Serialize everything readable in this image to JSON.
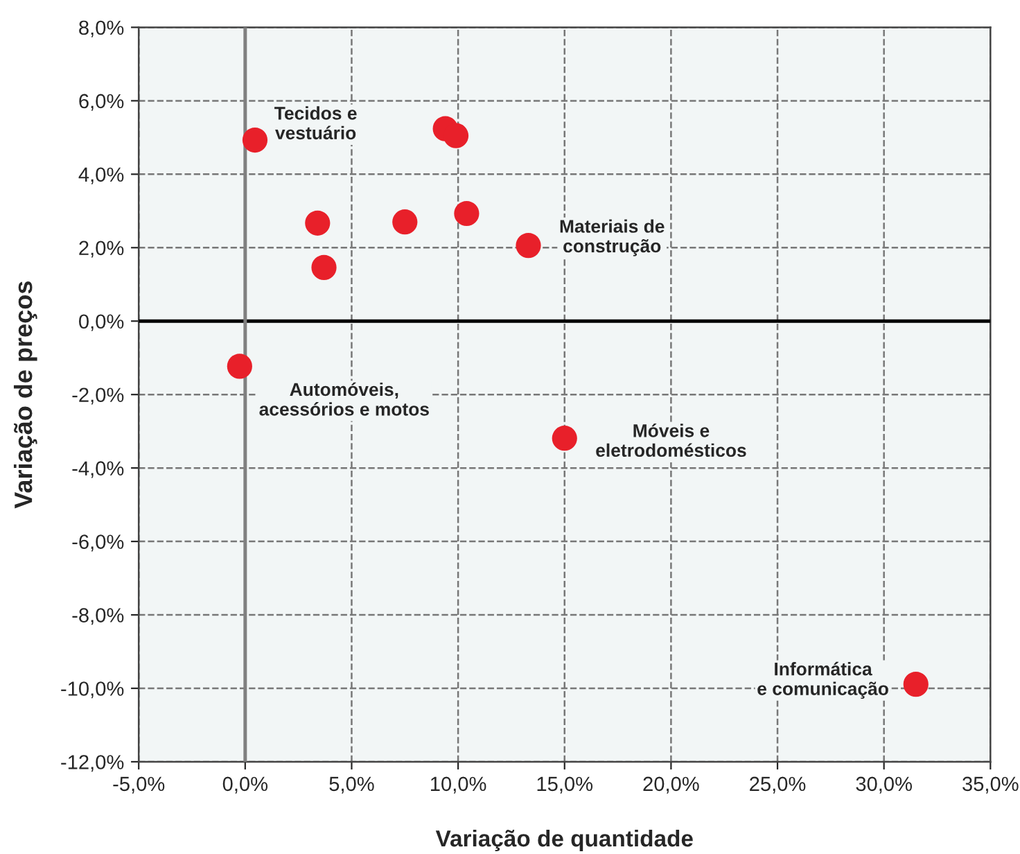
{
  "chart_data": {
    "type": "scatter",
    "xlabel": "Variação de quantidade",
    "ylabel": "Variação de preços",
    "x": [
      0.46,
      3.4,
      3.7,
      7.5,
      9.4,
      9.9,
      10.4,
      13.3,
      -0.26,
      15.0,
      31.5
    ],
    "series": [
      {
        "color": "#e8202a",
        "values": [
          4.93,
          2.67,
          1.46,
          2.7,
          5.24,
          5.05,
          2.93,
          2.06,
          -1.23,
          -3.19,
          -9.89
        ]
      }
    ],
    "marker": "circle",
    "grid": true,
    "xlim": [
      -5,
      35
    ],
    "ylim": [
      -12,
      8
    ],
    "xticks": [
      {
        "value": -5,
        "label": "-5,0%"
      },
      {
        "value": 0,
        "label": "0,0%"
      },
      {
        "value": 5,
        "label": "5,0%"
      },
      {
        "value": 10,
        "label": "10,0%"
      },
      {
        "value": 15,
        "label": "15,0%"
      },
      {
        "value": 20,
        "label": "20,0%"
      },
      {
        "value": 25,
        "label": "25,0%"
      },
      {
        "value": 30,
        "label": "30,0%"
      },
      {
        "value": 35,
        "label": "35,0%"
      }
    ],
    "yticks": [
      {
        "value": -12,
        "label": "-12,0%"
      },
      {
        "value": -10,
        "label": "-10,0%"
      },
      {
        "value": -8,
        "label": "-8,0%"
      },
      {
        "value": -6,
        "label": "-6,0%"
      },
      {
        "value": -4,
        "label": "-4,0%"
      },
      {
        "value": -2,
        "label": "-2,0%"
      },
      {
        "value": 0,
        "label": "0,0%"
      },
      {
        "value": 2,
        "label": "2,0%"
      },
      {
        "value": 4,
        "label": "4,0%"
      },
      {
        "value": 6,
        "label": "6,0%"
      },
      {
        "value": 8,
        "label": "8,0%"
      }
    ],
    "ref_lines": [
      {
        "axis": "y",
        "value": 0,
        "color": "#000000"
      },
      {
        "axis": "x",
        "value": 0,
        "color": "#808080"
      }
    ],
    "annotations": [
      {
        "text": "Tecidos e\nvestuário",
        "x": 0.46,
        "y": 4.93
      },
      {
        "text": "Materiais de\nconstrução",
        "x": 13.3,
        "y": 2.06
      },
      {
        "text": "Automóveis,\nacessórios e motos",
        "x": -0.26,
        "y": -1.23
      },
      {
        "text": "Móveis e\neletrodomésticos",
        "x": 15.0,
        "y": -3.19
      },
      {
        "text": "Informática\ne comunicação",
        "x": 31.5,
        "y": -9.89
      }
    ]
  }
}
